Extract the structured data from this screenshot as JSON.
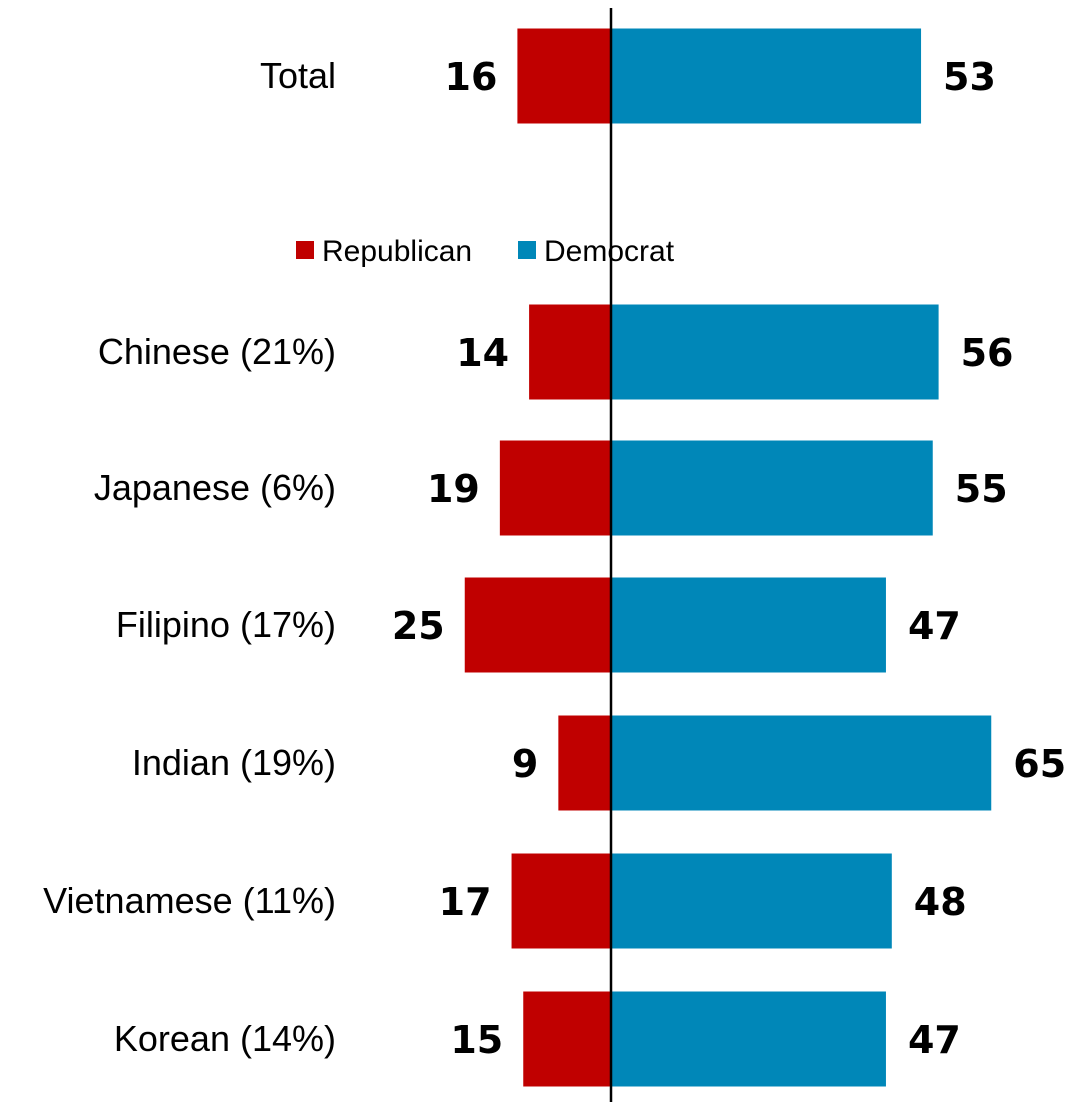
{
  "colors": {
    "republican": "#c00000",
    "democrat": "#0087b8",
    "axis": "#000000"
  },
  "chart_data": {
    "type": "bar",
    "orientation": "horizontal-diverging",
    "title": "",
    "xlabel": "",
    "ylabel": "",
    "legend_position": "top-center",
    "grid": false,
    "categories": [
      "Total",
      "Chinese (21%)",
      "Japanese (6%)",
      "Filipino (17%)",
      "Indian (19%)",
      "Vietnamese (11%)",
      "Korean (14%)"
    ],
    "series": [
      {
        "name": "Republican",
        "values": [
          16,
          14,
          19,
          25,
          9,
          17,
          15
        ]
      },
      {
        "name": "Democrat",
        "values": [
          53,
          56,
          55,
          47,
          65,
          48,
          47
        ]
      }
    ]
  }
}
